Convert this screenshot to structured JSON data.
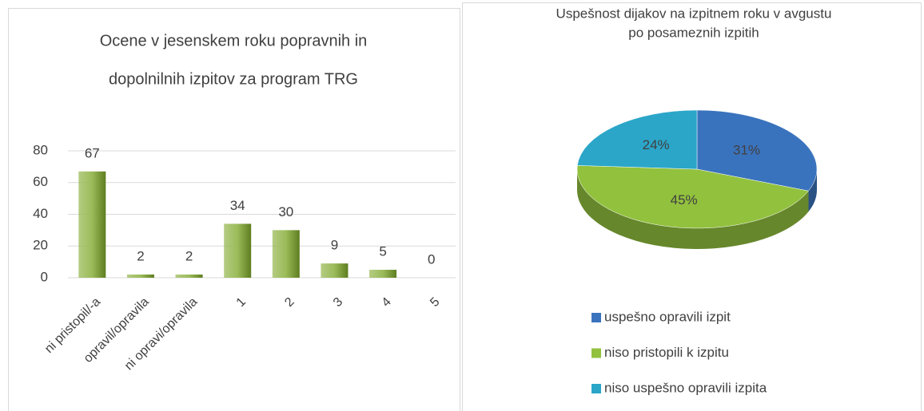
{
  "chart_data": [
    {
      "type": "bar",
      "title": [
        "Ocene v jesenskem roku popravnih in",
        "dopolnilnih izpitov za program TRG"
      ],
      "categories": [
        "ni pristopil/-a",
        "opravil/opravila",
        "ni opravi/opravila",
        "1",
        "2",
        "3",
        "4",
        "5"
      ],
      "values": [
        67,
        2,
        2,
        34,
        30,
        9,
        5,
        0
      ],
      "color": "#9bbb59",
      "ylim": [
        0,
        80
      ],
      "yticks": [
        0,
        20,
        40,
        60,
        80
      ],
      "grid": true
    },
    {
      "type": "pie",
      "title": [
        "Uspešnost dijakov na izpitnem roku v avgustu",
        "po  posameznih izpitih"
      ],
      "categories": [
        "uspešno opravili izpit",
        "niso pristopili k izpitu",
        "niso uspešno opravili izpita"
      ],
      "values": [
        31,
        45,
        24
      ],
      "value_labels": [
        "31%",
        "45%",
        "24%"
      ],
      "colors": [
        "#3a73bd",
        "#92c13e",
        "#2ba6c9"
      ]
    }
  ]
}
